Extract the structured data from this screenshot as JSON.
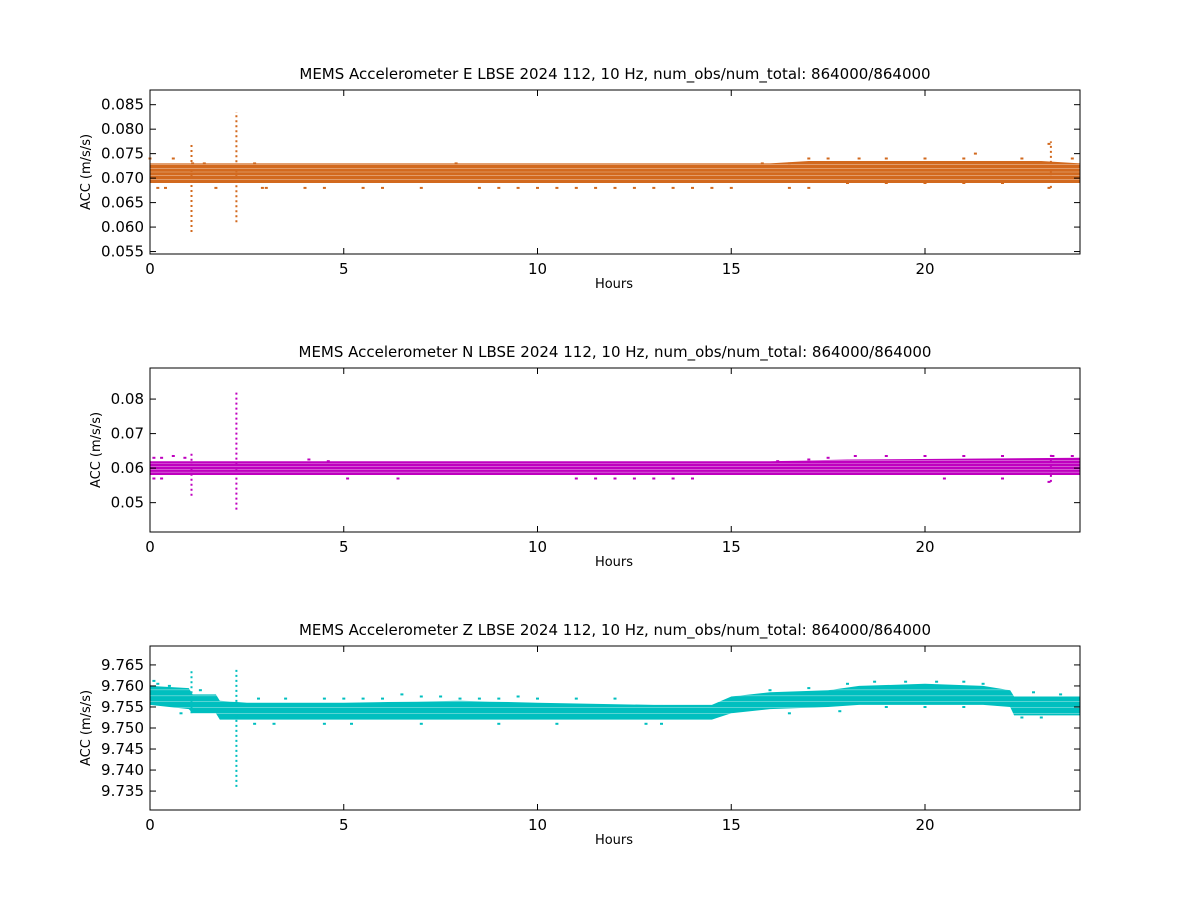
{
  "chart_data": [
    {
      "type": "scatter",
      "title": "MEMS Accelerometer E LBSE 2024 112, 10 Hz, num_obs/num_total: 864000/864000",
      "xlabel": "Hours",
      "ylabel": "ACC (m/s/s)",
      "xlim": [
        0,
        24
      ],
      "ylim": [
        0.0545,
        0.088
      ],
      "xticks": [
        "0",
        "5",
        "10",
        "15",
        "20"
      ],
      "yticks": [
        "0.055",
        "0.060",
        "0.065",
        "0.070",
        "0.075",
        "0.080",
        "0.085"
      ],
      "color": "#d2691e",
      "series": [
        {
          "band_upper": [
            [
              0,
              0.073
            ],
            [
              16.0,
              0.073
            ],
            [
              17.0,
              0.0735
            ],
            [
              23.0,
              0.0735
            ],
            [
              24,
              0.073
            ]
          ],
          "band_lower": [
            [
              0,
              0.069
            ],
            [
              24,
              0.069
            ]
          ],
          "edge_dots": [
            [
              0,
              0.074
            ],
            [
              0.6,
              0.074
            ],
            [
              0.2,
              0.068
            ],
            [
              1.1,
              0.073
            ],
            [
              1.4,
              0.073
            ],
            [
              2.7,
              0.073
            ],
            [
              3.0,
              0.068
            ],
            [
              7.9,
              0.073
            ],
            [
              15.8,
              0.073
            ],
            [
              16.5,
              0.073
            ],
            [
              17.0,
              0.074
            ],
            [
              17.5,
              0.074
            ],
            [
              18.3,
              0.074
            ],
            [
              19.0,
              0.074
            ],
            [
              20.0,
              0.074
            ],
            [
              21.0,
              0.074
            ],
            [
              21.3,
              0.075
            ],
            [
              22.5,
              0.074
            ],
            [
              23.2,
              0.077
            ],
            [
              23.8,
              0.074
            ],
            [
              0.4,
              0.068
            ],
            [
              1.7,
              0.068
            ],
            [
              2.9,
              0.068
            ],
            [
              4.0,
              0.068
            ],
            [
              4.5,
              0.068
            ],
            [
              5.5,
              0.068
            ],
            [
              6.0,
              0.068
            ],
            [
              7.0,
              0.068
            ],
            [
              8.5,
              0.068
            ],
            [
              9.0,
              0.068
            ],
            [
              9.5,
              0.068
            ],
            [
              10.0,
              0.068
            ],
            [
              10.5,
              0.068
            ],
            [
              11.0,
              0.068
            ],
            [
              11.5,
              0.068
            ],
            [
              12.0,
              0.068
            ],
            [
              12.5,
              0.068
            ],
            [
              13.0,
              0.068
            ],
            [
              13.5,
              0.068
            ],
            [
              14.0,
              0.068
            ],
            [
              14.5,
              0.068
            ],
            [
              15.0,
              0.068
            ],
            [
              16.5,
              0.068
            ],
            [
              17.0,
              0.068
            ],
            [
              18.0,
              0.069
            ],
            [
              19.0,
              0.069
            ],
            [
              20.0,
              0.069
            ],
            [
              21.0,
              0.069
            ],
            [
              22.0,
              0.069
            ],
            [
              23.2,
              0.068
            ]
          ],
          "spikes": [
            {
              "x": 1.07,
              "y_min": 0.059,
              "y_max": 0.077
            },
            {
              "x": 2.23,
              "y_min": 0.061,
              "y_max": 0.0835
            },
            {
              "x": 23.25,
              "y_min": 0.068,
              "y_max": 0.0775
            }
          ]
        }
      ]
    },
    {
      "type": "scatter",
      "title": "MEMS Accelerometer N LBSE 2024 112, 10 Hz, num_obs/num_total: 864000/864000",
      "xlabel": "Hours",
      "ylabel": "ACC (m/s/s)",
      "xlim": [
        0,
        24
      ],
      "ylim": [
        0.0415,
        0.089
      ],
      "xticks": [
        "0",
        "5",
        "10",
        "15",
        "20"
      ],
      "yticks": [
        "0.05",
        "0.06",
        "0.07",
        "0.08"
      ],
      "color": "#bf00bf",
      "series": [
        {
          "band_upper": [
            [
              0,
              0.062
            ],
            [
              16.0,
              0.062
            ],
            [
              18.0,
              0.0625
            ],
            [
              24,
              0.063
            ]
          ],
          "band_lower": [
            [
              0,
              0.058
            ],
            [
              24,
              0.058
            ]
          ],
          "edge_dots": [
            [
              0.1,
              0.063
            ],
            [
              0.3,
              0.063
            ],
            [
              0.6,
              0.0635
            ],
            [
              0.9,
              0.063
            ],
            [
              4.1,
              0.0625
            ],
            [
              4.6,
              0.062
            ],
            [
              16.2,
              0.062
            ],
            [
              17.0,
              0.0625
            ],
            [
              17.5,
              0.063
            ],
            [
              18.2,
              0.0635
            ],
            [
              19.0,
              0.0635
            ],
            [
              20.0,
              0.0635
            ],
            [
              21.0,
              0.0635
            ],
            [
              22.0,
              0.0635
            ],
            [
              23.3,
              0.0635
            ],
            [
              23.8,
              0.0635
            ],
            [
              0.1,
              0.057
            ],
            [
              0.3,
              0.057
            ],
            [
              5.1,
              0.057
            ],
            [
              6.4,
              0.057
            ],
            [
              11.0,
              0.057
            ],
            [
              11.5,
              0.057
            ],
            [
              12.0,
              0.057
            ],
            [
              12.5,
              0.057
            ],
            [
              13.0,
              0.057
            ],
            [
              13.5,
              0.057
            ],
            [
              14.0,
              0.057
            ],
            [
              20.5,
              0.057
            ],
            [
              22.0,
              0.057
            ],
            [
              23.2,
              0.056
            ]
          ],
          "spikes": [
            {
              "x": 1.07,
              "y_min": 0.052,
              "y_max": 0.065
            },
            {
              "x": 2.23,
              "y_min": 0.048,
              "y_max": 0.0825
            },
            {
              "x": 23.25,
              "y_min": 0.056,
              "y_max": 0.064
            }
          ]
        }
      ]
    },
    {
      "type": "scatter",
      "title": "MEMS Accelerometer Z LBSE 2024 112, 10 Hz, num_obs/num_total: 864000/864000",
      "xlabel": "Hours",
      "ylabel": "ACC (m/s/s)",
      "xlim": [
        0,
        24
      ],
      "ylim": [
        9.7305,
        9.7695
      ],
      "xticks": [
        "0",
        "5",
        "10",
        "15",
        "20"
      ],
      "yticks": [
        "9.735",
        "9.740",
        "9.745",
        "9.750",
        "9.755",
        "9.760",
        "9.765"
      ],
      "color": "#00bfbf",
      "series": [
        {
          "band_upper": [
            [
              0,
              9.76
            ],
            [
              1.0,
              9.7595
            ],
            [
              1.1,
              9.758
            ],
            [
              1.7,
              9.758
            ],
            [
              1.8,
              9.7565
            ],
            [
              2.5,
              9.756
            ],
            [
              5,
              9.756
            ],
            [
              8,
              9.7565
            ],
            [
              10,
              9.756
            ],
            [
              13,
              9.7555
            ],
            [
              14.5,
              9.7555
            ],
            [
              15.0,
              9.7575
            ],
            [
              16.0,
              9.7585
            ],
            [
              17.5,
              9.759
            ],
            [
              18.3,
              9.76
            ],
            [
              20,
              9.7605
            ],
            [
              21.5,
              9.76
            ],
            [
              22.2,
              9.759
            ],
            [
              22.3,
              9.7575
            ],
            [
              24,
              9.7575
            ]
          ],
          "band_lower": [
            [
              0,
              9.7555
            ],
            [
              1.0,
              9.7545
            ],
            [
              1.1,
              9.7535
            ],
            [
              1.7,
              9.7535
            ],
            [
              1.8,
              9.752
            ],
            [
              5,
              9.752
            ],
            [
              10,
              9.752
            ],
            [
              13,
              9.752
            ],
            [
              14.5,
              9.752
            ],
            [
              15.0,
              9.7535
            ],
            [
              16.0,
              9.7545
            ],
            [
              17.5,
              9.755
            ],
            [
              18.3,
              9.7555
            ],
            [
              20,
              9.7555
            ],
            [
              21.5,
              9.7555
            ],
            [
              22.2,
              9.755
            ],
            [
              22.3,
              9.753
            ],
            [
              24,
              9.753
            ]
          ],
          "edge_dots": [
            [
              0.1,
              9.7612
            ],
            [
              0.2,
              9.7605
            ],
            [
              0.5,
              9.76
            ],
            [
              0.8,
              9.7535
            ],
            [
              1.3,
              9.759
            ],
            [
              2.8,
              9.757
            ],
            [
              3.5,
              9.757
            ],
            [
              4.5,
              9.757
            ],
            [
              5.0,
              9.757
            ],
            [
              5.5,
              9.757
            ],
            [
              6.0,
              9.757
            ],
            [
              6.5,
              9.758
            ],
            [
              7.0,
              9.7575
            ],
            [
              7.5,
              9.7575
            ],
            [
              8.0,
              9.757
            ],
            [
              8.5,
              9.757
            ],
            [
              9.0,
              9.757
            ],
            [
              9.5,
              9.7575
            ],
            [
              10.0,
              9.757
            ],
            [
              11.0,
              9.757
            ],
            [
              12.0,
              9.757
            ],
            [
              16.0,
              9.759
            ],
            [
              17.0,
              9.7595
            ],
            [
              18.0,
              9.7605
            ],
            [
              18.7,
              9.761
            ],
            [
              19.5,
              9.761
            ],
            [
              20.3,
              9.761
            ],
            [
              21.0,
              9.761
            ],
            [
              21.5,
              9.7605
            ],
            [
              22.8,
              9.7585
            ],
            [
              23.5,
              9.758
            ],
            [
              2.7,
              9.751
            ],
            [
              3.2,
              9.751
            ],
            [
              4.5,
              9.751
            ],
            [
              5.2,
              9.751
            ],
            [
              7.0,
              9.751
            ],
            [
              9.0,
              9.751
            ],
            [
              10.5,
              9.751
            ],
            [
              12.8,
              9.751
            ],
            [
              13.2,
              9.751
            ],
            [
              16.5,
              9.7535
            ],
            [
              17.8,
              9.754
            ],
            [
              19.0,
              9.755
            ],
            [
              20.0,
              9.755
            ],
            [
              21.0,
              9.755
            ],
            [
              22.5,
              9.7525
            ],
            [
              23.0,
              9.7525
            ]
          ],
          "spikes": [
            {
              "x": 1.07,
              "y_min": 9.7535,
              "y_max": 9.7635
            },
            {
              "x": 2.23,
              "y_min": 9.736,
              "y_max": 9.7645
            }
          ]
        }
      ]
    }
  ]
}
